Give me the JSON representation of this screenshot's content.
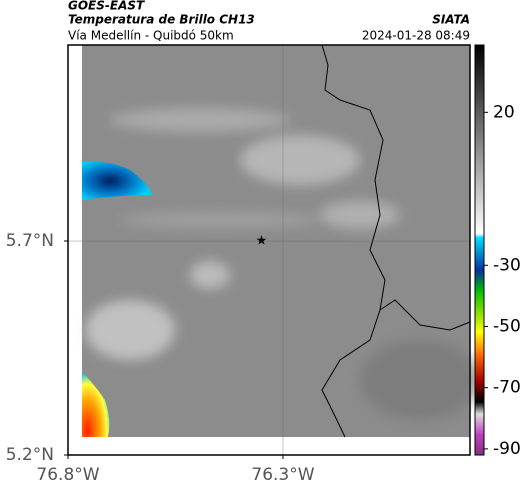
{
  "header": {
    "source": "GOES-EAST",
    "product": "Temperatura de Brillo CH13",
    "route": "Vía Medellín - Quibdó 50km",
    "agency": "SIATA",
    "timestamp": "2024-01-28 08:49"
  },
  "map": {
    "xlim": [
      -76.8,
      -75.865
    ],
    "ylim": [
      5.2,
      6.158
    ],
    "xticks": [
      {
        "value": -76.8,
        "label": "76.8°W"
      },
      {
        "value": -76.3,
        "label": "76.3°W"
      }
    ],
    "yticks": [
      {
        "value": 5.7,
        "label": "5.7°N"
      },
      {
        "value": 5.2,
        "label": "5.2°N"
      }
    ],
    "grid": true,
    "marker": {
      "lon": -76.35,
      "lat": 5.7
    }
  },
  "colorbar": {
    "lim": [
      -92,
      42
    ],
    "ticks": [
      20,
      -30,
      -50,
      -70,
      -90
    ]
  }
}
